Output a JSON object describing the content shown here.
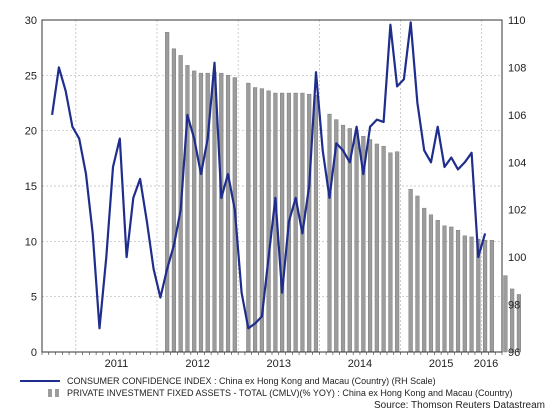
{
  "chart_data": {
    "type": "bar",
    "title": "",
    "xlabel": "",
    "ylabel": "",
    "y_left": {
      "min": 0,
      "max": 30,
      "ticks": [
        0,
        5,
        10,
        15,
        20,
        25,
        30
      ]
    },
    "y_right": {
      "min": 96,
      "max": 110,
      "ticks": [
        96,
        98,
        100,
        102,
        104,
        106,
        108,
        110
      ]
    },
    "x_axis": {
      "labels": [
        "2011",
        "2012",
        "2013",
        "2014",
        "2015",
        "2016"
      ],
      "grid_lines": true
    },
    "grid": true,
    "legend": {
      "placement": "bottom",
      "entries": [
        {
          "marker": "line",
          "label": "CONSUMER CONFIDENCE INDEX : China ex Hong Kong and Macau (Country) (RH Scale)"
        },
        {
          "marker": "bar",
          "label": "PRIVATE INVESTMENT FIXED ASSETS - TOTAL (CMLV)(% YOY) : China ex Hong Kong and Macau (Country)"
        }
      ]
    },
    "source": "Source: Thomson Reuters Datastream",
    "colors": {
      "line": "#1f2d8c",
      "bars": "#9c9c9c",
      "grid": "#b7b7b7",
      "axis": "#333333"
    },
    "series": [
      {
        "name": "PRIVATE INVESTMENT FIXED ASSETS - TOTAL (CMLV)(% YOY) : China ex Hong Kong and Macau (Country)",
        "kind": "bar",
        "axis": "left",
        "points": [
          [
            "2012-02",
            28.9
          ],
          [
            "2012-03",
            27.4
          ],
          [
            "2012-04",
            26.8
          ],
          [
            "2012-05",
            25.9
          ],
          [
            "2012-06",
            25.4
          ],
          [
            "2012-07",
            25.2
          ],
          [
            "2012-08",
            25.2
          ],
          [
            "2012-09",
            25.3
          ],
          [
            "2012-10",
            25.2
          ],
          [
            "2012-11",
            25.0
          ],
          [
            "2012-12",
            24.8
          ],
          [
            "2013-02",
            24.3
          ],
          [
            "2013-03",
            23.9
          ],
          [
            "2013-04",
            23.8
          ],
          [
            "2013-05",
            23.6
          ],
          [
            "2013-06",
            23.4
          ],
          [
            "2013-07",
            23.4
          ],
          [
            "2013-08",
            23.4
          ],
          [
            "2013-09",
            23.4
          ],
          [
            "2013-10",
            23.4
          ],
          [
            "2013-11",
            23.3
          ],
          [
            "2013-12",
            23.2
          ],
          [
            "2014-02",
            21.5
          ],
          [
            "2014-03",
            21.0
          ],
          [
            "2014-04",
            20.5
          ],
          [
            "2014-05",
            20.2
          ],
          [
            "2014-06",
            20.0
          ],
          [
            "2014-07",
            19.5
          ],
          [
            "2014-08",
            19.2
          ],
          [
            "2014-09",
            18.8
          ],
          [
            "2014-10",
            18.6
          ],
          [
            "2014-11",
            18.0
          ],
          [
            "2014-12",
            18.1
          ],
          [
            "2015-02",
            14.7
          ],
          [
            "2015-03",
            14.1
          ],
          [
            "2015-04",
            13.0
          ],
          [
            "2015-05",
            12.4
          ],
          [
            "2015-06",
            11.9
          ],
          [
            "2015-07",
            11.4
          ],
          [
            "2015-08",
            11.3
          ],
          [
            "2015-09",
            11.0
          ],
          [
            "2015-10",
            10.5
          ],
          [
            "2015-11",
            10.4
          ],
          [
            "2015-12",
            10.2
          ],
          [
            "2016-01",
            10.1
          ],
          [
            "2016-02",
            10.1
          ],
          [
            "2016-04",
            6.9
          ],
          [
            "2016-05",
            5.7
          ],
          [
            "2016-06",
            5.2
          ]
        ]
      },
      {
        "name": "CONSUMER CONFIDENCE INDEX : China ex Hong Kong and Macau (Country) (RH Scale)",
        "kind": "line",
        "axis": "right",
        "points": [
          [
            "2010-09",
            106.0
          ],
          [
            "2010-10",
            108.0
          ],
          [
            "2010-11",
            107.0
          ],
          [
            "2010-12",
            105.5
          ],
          [
            "2011-01",
            105.0
          ],
          [
            "2011-02",
            103.5
          ],
          [
            "2011-03",
            101.0
          ],
          [
            "2011-04",
            97.0
          ],
          [
            "2011-05",
            100.0
          ],
          [
            "2011-06",
            103.8
          ],
          [
            "2011-07",
            105.0
          ],
          [
            "2011-08",
            100.0
          ],
          [
            "2011-09",
            102.5
          ],
          [
            "2011-10",
            103.3
          ],
          [
            "2011-11",
            101.5
          ],
          [
            "2011-12",
            99.5
          ],
          [
            "2012-01",
            98.3
          ],
          [
            "2012-02",
            99.5
          ],
          [
            "2012-03",
            100.5
          ],
          [
            "2012-04",
            102.0
          ],
          [
            "2012-05",
            106.0
          ],
          [
            "2012-06",
            105.0
          ],
          [
            "2012-07",
            103.5
          ],
          [
            "2012-08",
            105.0
          ],
          [
            "2012-09",
            108.2
          ],
          [
            "2012-10",
            102.5
          ],
          [
            "2012-11",
            103.5
          ],
          [
            "2012-12",
            102.0
          ],
          [
            "2013-01",
            98.5
          ],
          [
            "2013-02",
            97.0
          ],
          [
            "2013-03",
            97.2
          ],
          [
            "2013-04",
            97.5
          ],
          [
            "2013-05",
            100.0
          ],
          [
            "2013-06",
            102.5
          ],
          [
            "2013-07",
            98.5
          ],
          [
            "2013-08",
            101.5
          ],
          [
            "2013-09",
            102.5
          ],
          [
            "2013-10",
            101.0
          ],
          [
            "2013-11",
            103.0
          ],
          [
            "2013-12",
            107.8
          ],
          [
            "2014-01",
            104.5
          ],
          [
            "2014-02",
            102.5
          ],
          [
            "2014-03",
            104.8
          ],
          [
            "2014-04",
            104.5
          ],
          [
            "2014-05",
            104.0
          ],
          [
            "2014-06",
            105.5
          ],
          [
            "2014-07",
            103.5
          ],
          [
            "2014-08",
            105.5
          ],
          [
            "2014-09",
            105.8
          ],
          [
            "2014-10",
            105.7
          ],
          [
            "2014-11",
            109.8
          ],
          [
            "2014-12",
            107.2
          ],
          [
            "2015-01",
            107.5
          ],
          [
            "2015-02",
            109.9
          ],
          [
            "2015-03",
            106.5
          ],
          [
            "2015-04",
            104.5
          ],
          [
            "2015-05",
            104.0
          ],
          [
            "2015-06",
            105.5
          ],
          [
            "2015-07",
            103.8
          ],
          [
            "2015-08",
            104.2
          ],
          [
            "2015-09",
            103.7
          ],
          [
            "2015-10",
            104.0
          ],
          [
            "2015-11",
            104.4
          ],
          [
            "2015-12",
            100.0
          ],
          [
            "2016-01",
            101.0
          ]
        ]
      }
    ]
  }
}
